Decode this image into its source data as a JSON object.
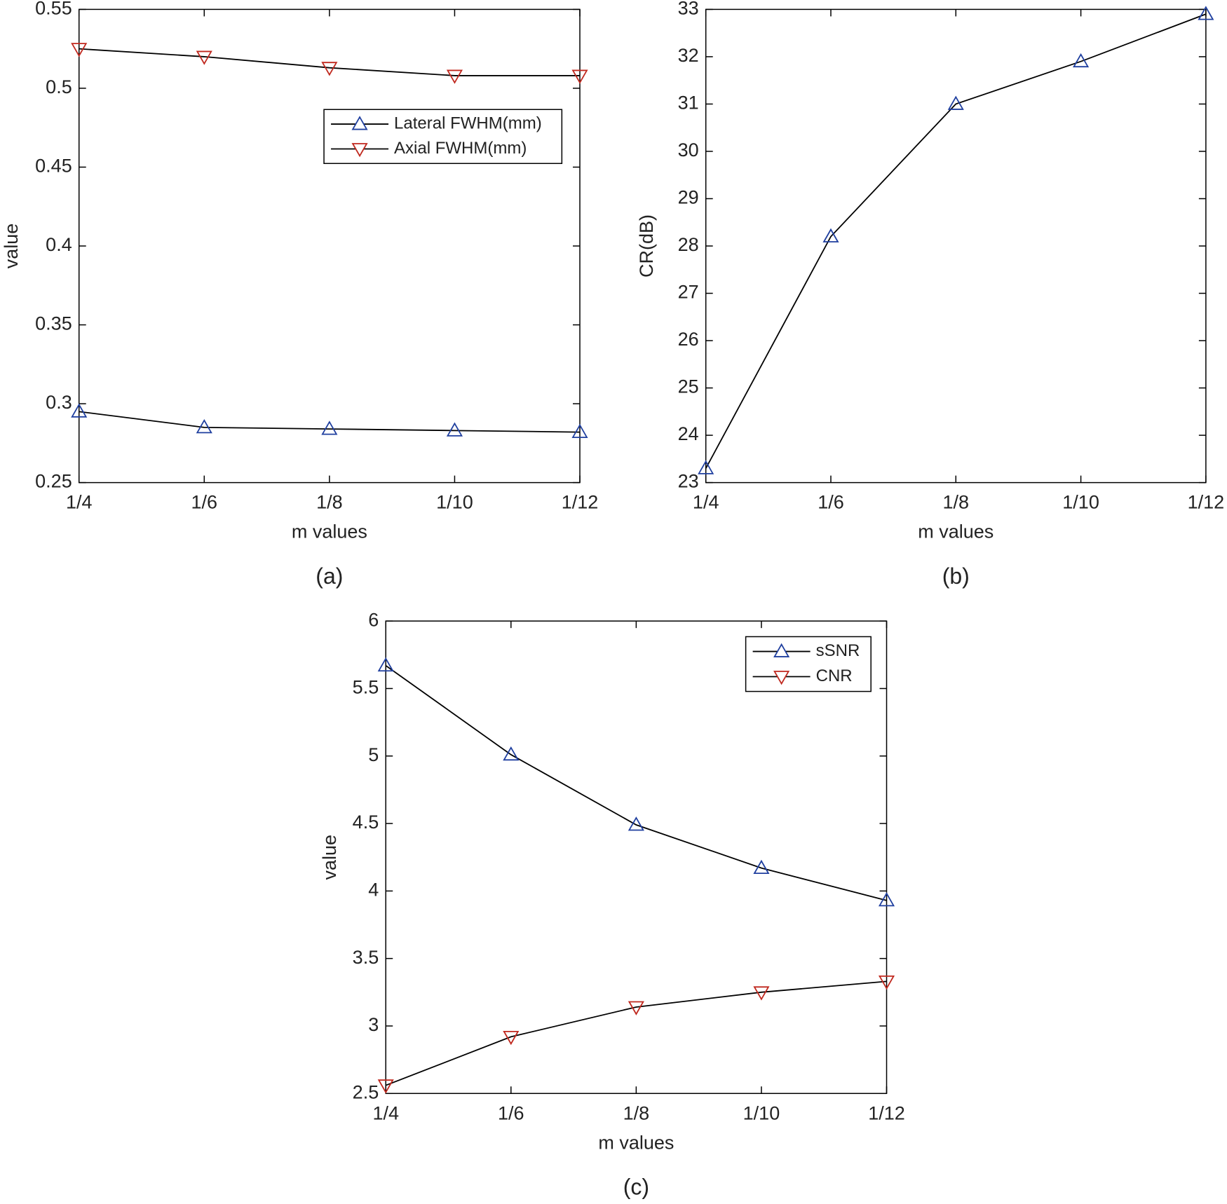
{
  "chart_data": [
    {
      "type": "line",
      "caption": "(a)",
      "xlabel": "m values",
      "ylabel": "value",
      "categories": [
        "1/4",
        "1/6",
        "1/8",
        "1/10",
        "1/12"
      ],
      "ylim": [
        0.25,
        0.55
      ],
      "yticks": [
        0.25,
        0.3,
        0.35,
        0.4,
        0.45,
        0.5,
        0.55
      ],
      "legend": "upper right",
      "series": [
        {
          "name": "Lateral FWHM(mm)",
          "color": "#000000",
          "marker": "^",
          "marker_color": "#1f3f9f",
          "values": [
            0.295,
            0.285,
            0.284,
            0.283,
            0.282
          ]
        },
        {
          "name": "Axial FWHM(mm)",
          "color": "#000000",
          "marker": "v",
          "marker_color": "#c0281e",
          "values": [
            0.525,
            0.52,
            0.513,
            0.508,
            0.508
          ]
        }
      ]
    },
    {
      "type": "line",
      "caption": "(b)",
      "xlabel": "m values",
      "ylabel": "CR(dB)",
      "categories": [
        "1/4",
        "1/6",
        "1/8",
        "1/10",
        "1/12"
      ],
      "ylim": [
        23,
        33
      ],
      "yticks": [
        23,
        24,
        25,
        26,
        27,
        28,
        29,
        30,
        31,
        32,
        33
      ],
      "series": [
        {
          "color": "#000000",
          "marker": "^",
          "marker_color": "#1f3f9f",
          "values": [
            23.3,
            28.2,
            31.0,
            31.9,
            32.9
          ]
        }
      ]
    },
    {
      "type": "line",
      "caption": "(c)",
      "xlabel": "m values",
      "ylabel": "value",
      "categories": [
        "1/4",
        "1/6",
        "1/8",
        "1/10",
        "1/12"
      ],
      "ylim": [
        2.5,
        6
      ],
      "yticks": [
        2.5,
        3,
        3.5,
        4,
        4.5,
        5,
        5.5,
        6
      ],
      "legend": "upper right",
      "series": [
        {
          "name": "sSNR",
          "color": "#000000",
          "marker": "^",
          "marker_color": "#1f3f9f",
          "values": [
            5.67,
            5.01,
            4.49,
            4.17,
            3.93
          ]
        },
        {
          "name": "CNR",
          "color": "#000000",
          "marker": "v",
          "marker_color": "#c0281e",
          "values": [
            2.56,
            2.92,
            3.14,
            3.25,
            3.33
          ]
        }
      ]
    }
  ]
}
